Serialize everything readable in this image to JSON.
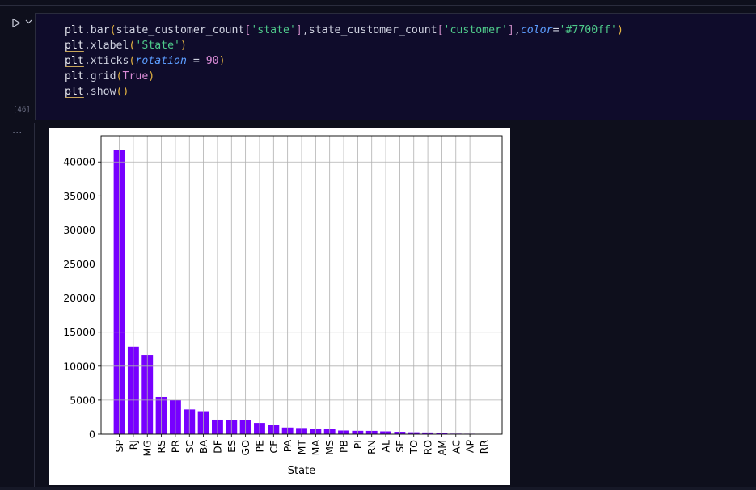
{
  "cell": {
    "execution_count": "[46]",
    "output_prompt": "...",
    "code_lines": [
      [
        [
          "plt",
          "plt"
        ],
        [
          "p",
          "."
        ],
        [
          "fn",
          "bar"
        ],
        [
          "br1",
          "("
        ],
        [
          "fn",
          "state_customer_count"
        ],
        [
          "br2",
          "["
        ],
        [
          "str",
          "'state'"
        ],
        [
          "br2",
          "]"
        ],
        [
          "p",
          ","
        ],
        [
          "fn",
          "state_customer_count"
        ],
        [
          "br2",
          "["
        ],
        [
          "str",
          "'customer'"
        ],
        [
          "br2",
          "]"
        ],
        [
          "p",
          ","
        ],
        [
          "kw",
          "color"
        ],
        [
          "p",
          "="
        ],
        [
          "str",
          "'#7700ff'"
        ],
        [
          "br1",
          ")"
        ]
      ],
      [
        [
          "plt",
          "plt"
        ],
        [
          "p",
          "."
        ],
        [
          "fn",
          "xlabel"
        ],
        [
          "br1",
          "("
        ],
        [
          "str",
          "'State'"
        ],
        [
          "br1",
          ")"
        ]
      ],
      [
        [
          "plt",
          "plt"
        ],
        [
          "p",
          "."
        ],
        [
          "fn",
          "xticks"
        ],
        [
          "br1",
          "("
        ],
        [
          "kw",
          "rotation"
        ],
        [
          "p",
          " = "
        ],
        [
          "num",
          "90"
        ],
        [
          "br1",
          ")"
        ]
      ],
      [
        [
          "plt",
          "plt"
        ],
        [
          "p",
          "."
        ],
        [
          "fn",
          "grid"
        ],
        [
          "br1",
          "("
        ],
        [
          "tr",
          "True"
        ],
        [
          "br1",
          ")"
        ]
      ],
      [
        [
          "plt",
          "plt"
        ],
        [
          "p",
          "."
        ],
        [
          "fn",
          "show"
        ],
        [
          "br1",
          "()"
        ]
      ]
    ]
  },
  "icons": {
    "run": "play-icon",
    "collapse": "chevron-down-icon",
    "output": "ellipsis-icon"
  },
  "colors": {
    "bar": "#7700ff",
    "grid": "#b0b0b0"
  },
  "chart_data": {
    "type": "bar",
    "categories": [
      "SP",
      "RJ",
      "MG",
      "RS",
      "PR",
      "SC",
      "BA",
      "DF",
      "ES",
      "GO",
      "PE",
      "CE",
      "PA",
      "MT",
      "MA",
      "MS",
      "PB",
      "PI",
      "RN",
      "AL",
      "SE",
      "TO",
      "RO",
      "AM",
      "AC",
      "AP",
      "RR"
    ],
    "values": [
      41746,
      12852,
      11635,
      5466,
      5045,
      3637,
      3380,
      2140,
      2033,
      2020,
      1652,
      1336,
      975,
      907,
      747,
      715,
      536,
      495,
      485,
      413,
      350,
      280,
      253,
      148,
      81,
      68,
      46
    ],
    "title": "",
    "xlabel": "State",
    "ylabel": "",
    "ylim": [
      0,
      43830
    ],
    "yticks": [
      0,
      5000,
      10000,
      15000,
      20000,
      25000,
      30000,
      35000,
      40000
    ],
    "xtick_rotation": 90,
    "grid": true
  }
}
